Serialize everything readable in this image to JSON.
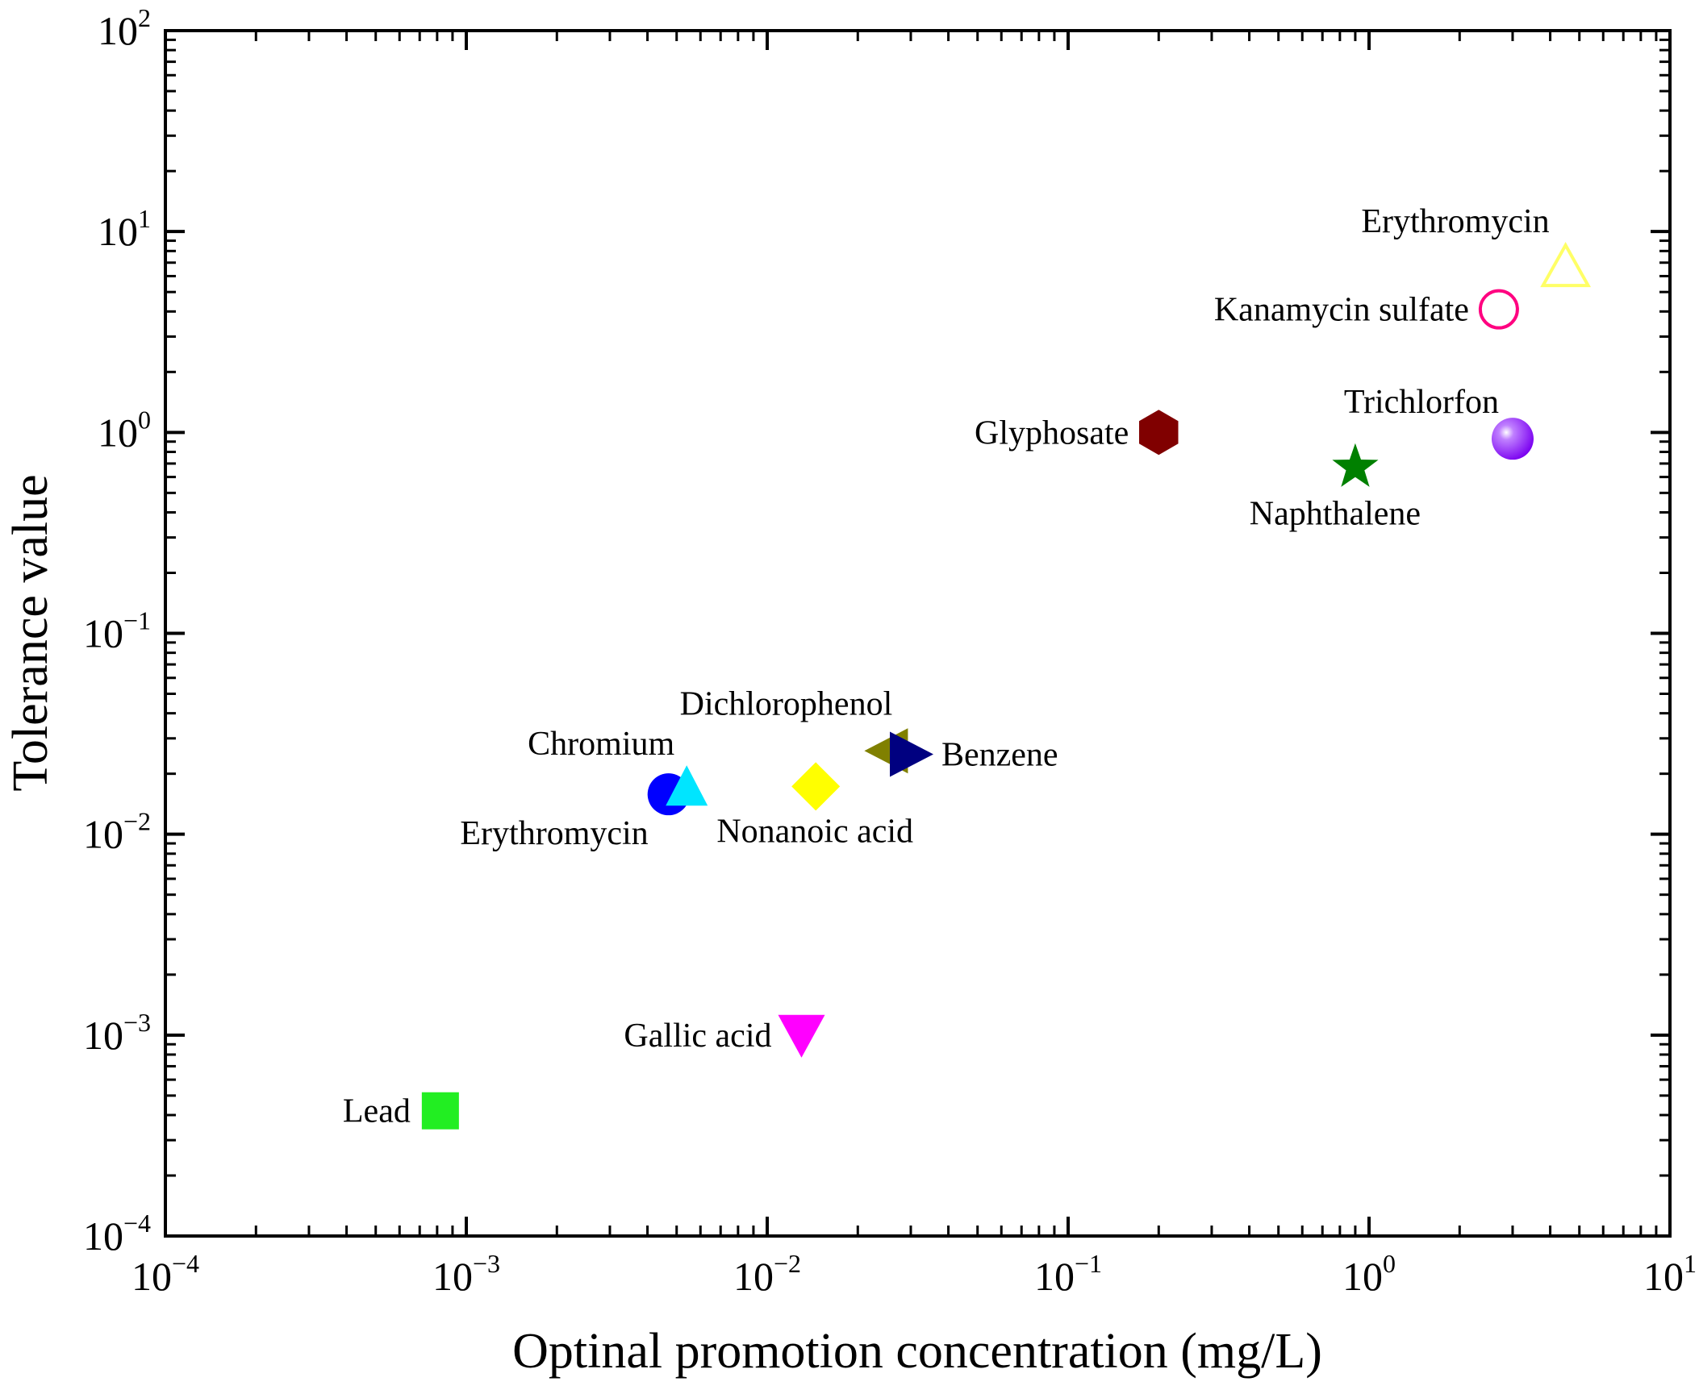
{
  "chart_data": {
    "type": "scatter",
    "title": "",
    "xlabel": "Optinal promotion concentration (mg/L)",
    "ylabel": "Tolerance value",
    "xscale": "log",
    "yscale": "log",
    "xlim": [
      0.0001,
      10
    ],
    "ylim": [
      0.0001,
      100
    ],
    "grid": false,
    "legend": "none",
    "xticks": [
      {
        "base": "10",
        "exp": "−4",
        "value": 0.0001
      },
      {
        "base": "10",
        "exp": "−3",
        "value": 0.001
      },
      {
        "base": "10",
        "exp": "−2",
        "value": 0.01
      },
      {
        "base": "10",
        "exp": "−1",
        "value": 0.1
      },
      {
        "base": "10",
        "exp": "0",
        "value": 1
      },
      {
        "base": "10",
        "exp": "1",
        "value": 10
      }
    ],
    "yticks": [
      {
        "base": "10",
        "exp": "−4",
        "value": 0.0001
      },
      {
        "base": "10",
        "exp": "−3",
        "value": 0.001
      },
      {
        "base": "10",
        "exp": "−2",
        "value": 0.01
      },
      {
        "base": "10",
        "exp": "−1",
        "value": 0.1
      },
      {
        "base": "10",
        "exp": "0",
        "value": 1
      },
      {
        "base": "10",
        "exp": "1",
        "value": 10
      },
      {
        "base": "10",
        "exp": "2",
        "value": 100
      }
    ],
    "points": [
      {
        "id": "lead",
        "label": "Lead",
        "x": 0.00082,
        "y": 0.00042,
        "marker": "square",
        "color": "#22ee22",
        "label_pos": "left"
      },
      {
        "id": "gallic-acid",
        "label": "Gallic acid",
        "x": 0.013,
        "y": 0.001,
        "marker": "triangle-down",
        "color": "#ff00ff",
        "label_pos": "left"
      },
      {
        "id": "erythromycin-low",
        "label": "Erythromycin",
        "x": 0.0047,
        "y": 0.0158,
        "marker": "circle",
        "color": "#0000ff",
        "label_pos": "below-left"
      },
      {
        "id": "chromium",
        "label": "Chromium",
        "x": 0.0054,
        "y": 0.017,
        "marker": "triangle-up",
        "color": "#00e5ff",
        "label_pos": "above-left"
      },
      {
        "id": "nonanoic-acid",
        "label": "Nonanoic acid",
        "x": 0.0145,
        "y": 0.0173,
        "marker": "diamond",
        "color": "#ffff00",
        "label_pos": "below"
      },
      {
        "id": "dichlorophenol",
        "label": "Dichlorophenol",
        "x": 0.025,
        "y": 0.026,
        "marker": "triangle-left",
        "color": "#808000",
        "label_pos": "above"
      },
      {
        "id": "benzene",
        "label": "Benzene",
        "x": 0.03,
        "y": 0.025,
        "marker": "triangle-right",
        "color": "#000080",
        "label_pos": "right"
      },
      {
        "id": "glyphosate",
        "label": "Glyphosate",
        "x": 0.2,
        "y": 1.0,
        "marker": "hexagon",
        "color": "#800000",
        "label_pos": "left"
      },
      {
        "id": "naphthalene",
        "label": "Naphthalene",
        "x": 0.9,
        "y": 0.67,
        "marker": "star",
        "color": "#008000",
        "label_pos": "below"
      },
      {
        "id": "trichlorfon",
        "label": "Trichlorfon",
        "x": 3.0,
        "y": 0.93,
        "marker": "sphere",
        "color": "#8000ff",
        "label_pos": "above-left"
      },
      {
        "id": "kanamycin-sulfate",
        "label": "Kanamycin sulfate",
        "x": 2.7,
        "y": 4.1,
        "marker": "circle-open",
        "color": "#ff0080",
        "label_pos": "left"
      },
      {
        "id": "erythromycin-high",
        "label": "Erythromycin",
        "x": 4.5,
        "y": 6.6,
        "marker": "triangle-up-open",
        "color": "#ffff66",
        "label_pos": "above-left"
      }
    ]
  }
}
